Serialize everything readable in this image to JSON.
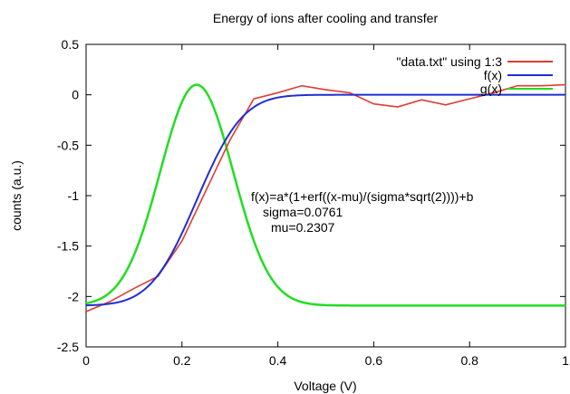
{
  "chart_data": {
    "type": "line",
    "title": "Energy of ions after cooling and transfer",
    "xlabel": "Voltage (V)",
    "ylabel": "counts (a.u.)",
    "xlim": [
      0,
      1
    ],
    "ylim": [
      -2.5,
      0.5
    ],
    "xticks": [
      0,
      0.2,
      0.4,
      0.6,
      0.8,
      1
    ],
    "xtick_labels": [
      "0",
      "0.2",
      "0.4",
      "0.6",
      "0.8",
      "1"
    ],
    "yticks": [
      0.5,
      0,
      -0.5,
      -1,
      -1.5,
      -2,
      -2.5
    ],
    "ytick_labels": [
      "0.5",
      "0",
      "-0.5",
      "-1",
      "-1.5",
      "-2",
      "-2.5"
    ],
    "grid": false,
    "legend_position": "top-right",
    "series": [
      {
        "name": "\"data.txt\" using 1:3",
        "color": "#e03c31",
        "x": [
          0,
          0.05,
          0.1,
          0.15,
          0.2,
          0.25,
          0.3,
          0.35,
          0.4,
          0.45,
          0.5,
          0.55,
          0.6,
          0.65,
          0.7,
          0.75,
          0.8,
          0.85,
          0.9,
          0.95,
          1.0
        ],
        "y": [
          -2.15,
          -2.05,
          -1.92,
          -1.8,
          -1.45,
          -0.95,
          -0.45,
          -0.04,
          0.02,
          0.09,
          0.05,
          0.02,
          -0.09,
          -0.12,
          -0.05,
          -0.1,
          -0.04,
          0.02,
          0.09,
          0.09,
          0.1
        ]
      },
      {
        "name": "f(x)",
        "color": "#1f2fd0",
        "function": "erf_fit",
        "a": 1.045,
        "mu": 0.2307,
        "sigma": 0.0761,
        "b": -2.09
      },
      {
        "name": "g(x)",
        "color": "#22dd22",
        "function": "gaussian",
        "mu": 0.2307,
        "sigma": 0.0761,
        "peak": 0.1,
        "baseline": -2.09
      }
    ],
    "annotations": [
      "f(x)=a*(1+erf((x-mu)/(sigma*sqrt(2))))+b",
      "sigma=0.0761",
      "mu=0.2307"
    ]
  }
}
